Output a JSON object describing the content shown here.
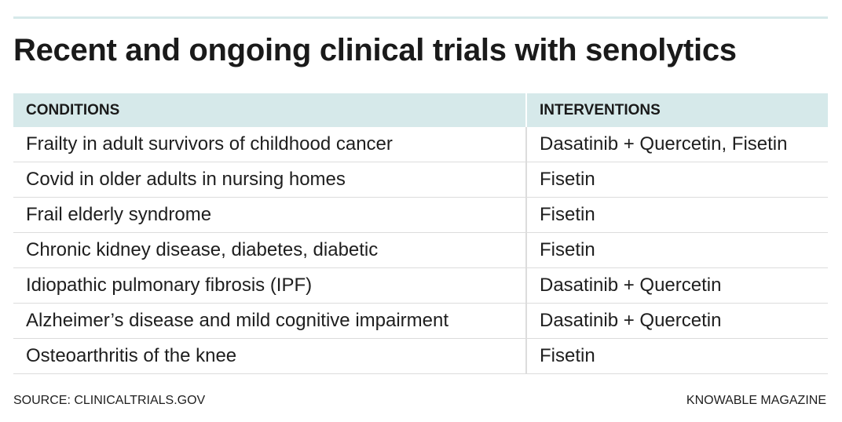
{
  "title": "Recent and ongoing clinical trials with senolytics",
  "table": {
    "headers": [
      "CONDITIONS",
      "INTERVENTIONS"
    ],
    "rows": [
      [
        "Frailty in adult survivors of childhood cancer",
        "Dasatinib + Quercetin, Fisetin"
      ],
      [
        "Covid in older adults in nursing homes",
        "Fisetin"
      ],
      [
        "Frail elderly syndrome",
        "Fisetin"
      ],
      [
        "Chronic kidney disease, diabetes, diabetic",
        "Fisetin"
      ],
      [
        "Idiopathic pulmonary fibrosis (IPF)",
        "Dasatinib + Quercetin"
      ],
      [
        "Alzheimer’s disease and mild cognitive impairment",
        "Dasatinib + Quercetin"
      ],
      [
        "Osteoarthritis of the knee",
        "Fisetin"
      ]
    ]
  },
  "footer": {
    "source": "SOURCE: CLINICALTRIALS.GOV",
    "credit": "KNOWABLE MAGAZINE"
  },
  "colors": {
    "header_background": "#d6e9ea",
    "top_rule": "#d6e9ea",
    "text": "#1e1e1e",
    "row_divider": "#dcdcdc"
  }
}
